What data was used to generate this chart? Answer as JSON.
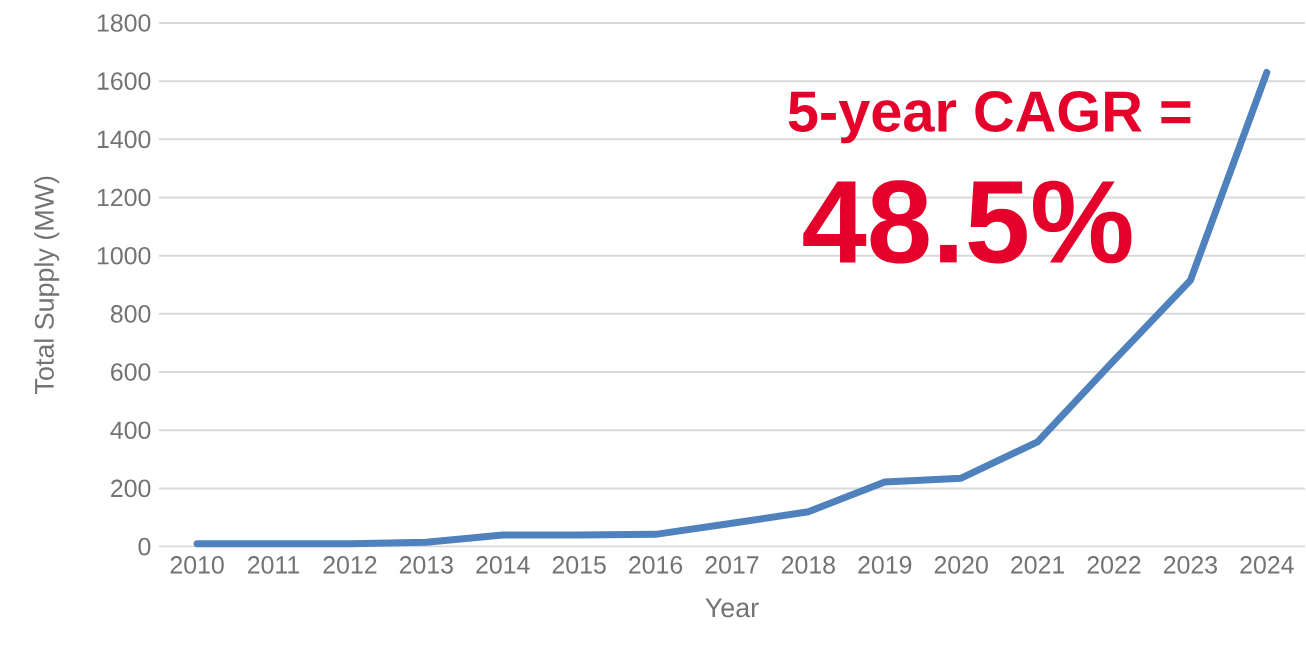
{
  "chart_data": {
    "type": "line",
    "xlabel": "Year",
    "ylabel": "Total Supply (MW)",
    "categories": [
      "2010",
      "2011",
      "2012",
      "2013",
      "2014",
      "2015",
      "2016",
      "2017",
      "2018",
      "2019",
      "2020",
      "2021",
      "2022",
      "2023",
      "2024"
    ],
    "series": [
      {
        "color": "#4f81bd",
        "values": [
          10,
          10,
          10,
          15,
          40,
          40,
          42,
          80,
          120,
          222,
          235,
          360,
          640,
          915,
          1630
        ]
      }
    ],
    "ylim": [
      0,
      1800
    ],
    "yticks": [
      0,
      200,
      400,
      600,
      800,
      1000,
      1200,
      1400,
      1600,
      1800
    ],
    "grid": "y",
    "marker": "none",
    "line_style": "solid",
    "annotations": [
      "5-year CAGR =",
      "48.5%"
    ]
  }
}
